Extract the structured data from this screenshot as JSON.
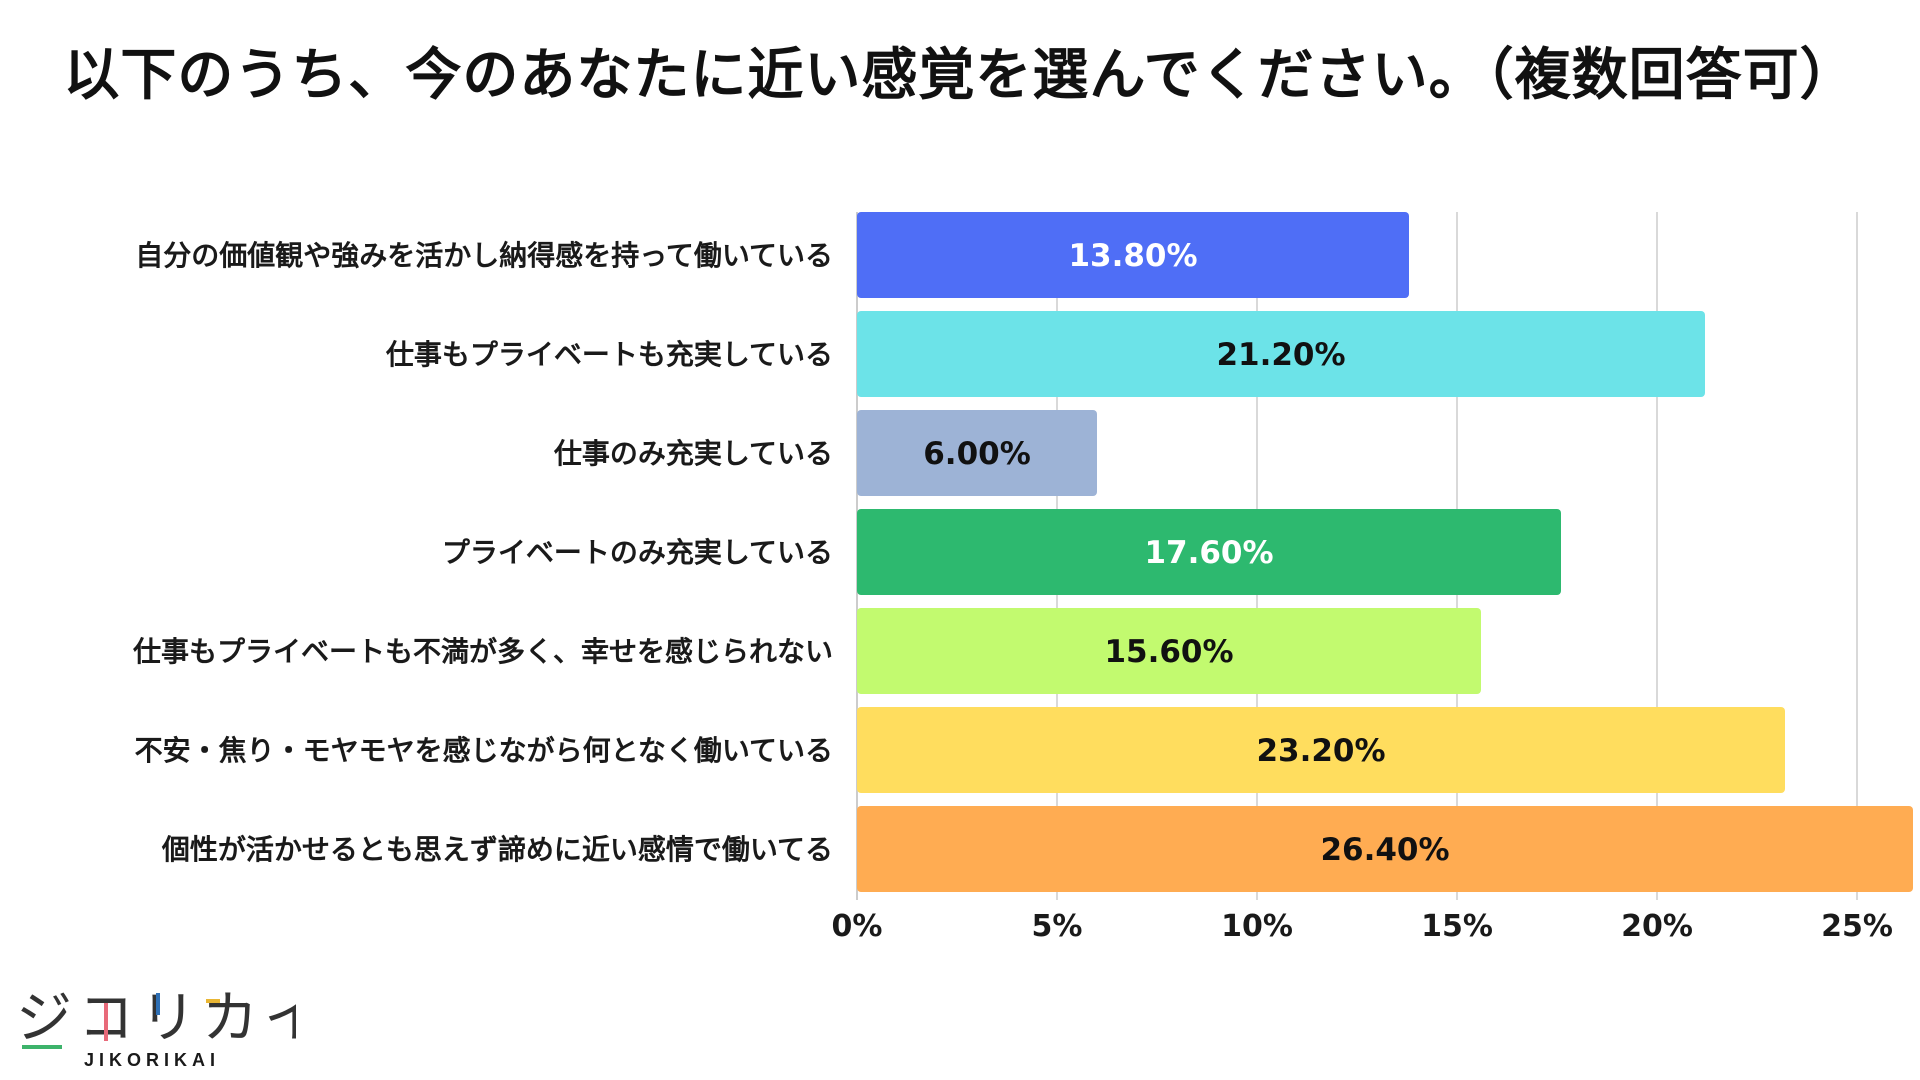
{
  "chart_data": {
    "type": "bar",
    "orientation": "horizontal",
    "title": "以下のうち、今のあなたに近い感覚を選んでください。（複数回答可）",
    "categories": [
      "自分の価値観や強みを活かし納得感を持って働いている",
      "仕事もプライベートも充実している",
      "仕事のみ充実している",
      "プライベートのみ充実している",
      "仕事もプライベートも不満が多く、幸せを感じられない",
      "不安・焦り・モヤモヤを感じながら何となく働いている",
      "個性が活かせるとも思えず諦めに近い感情で働いてる"
    ],
    "values": [
      13.8,
      21.2,
      6.0,
      17.6,
      15.6,
      23.2,
      26.4
    ],
    "value_labels": [
      "13.80%",
      "21.20%",
      "6.00%",
      "17.60%",
      "15.60%",
      "23.20%",
      "26.40%"
    ],
    "colors": [
      "#4f6ef6",
      "#6ce3e8",
      "#9db3d6",
      "#2db96f",
      "#c2fa6f",
      "#ffdd5e",
      "#ffac52"
    ],
    "label_colors": [
      "#ffffff",
      "#111111",
      "#111111",
      "#ffffff",
      "#111111",
      "#111111",
      "#111111"
    ],
    "xlim": [
      0,
      26.5
    ],
    "xticks": [
      0,
      5,
      10,
      15,
      20,
      25
    ],
    "xtick_labels": [
      "0%",
      "5%",
      "10%",
      "15%",
      "20%",
      "25%"
    ],
    "grid": true,
    "xlabel": "",
    "ylabel": ""
  },
  "brand": {
    "logo_chars": [
      "ジ",
      "コ",
      "リ",
      "カ",
      "イ"
    ],
    "logo_sub": "JIKORIKAI",
    "accent_colors": [
      "#3db36b",
      "#e86a7a",
      "#2e6fb4",
      "#e9b634"
    ]
  }
}
